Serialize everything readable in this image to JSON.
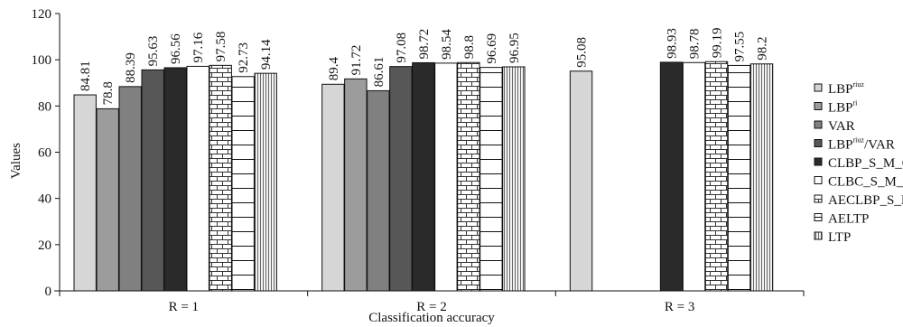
{
  "chart_data": {
    "type": "bar",
    "xlabel": "Classification accuracy",
    "ylabel": "Values",
    "ylim": [
      0,
      120
    ],
    "yticks": [
      0,
      20,
      40,
      60,
      80,
      100,
      120
    ],
    "grid": false,
    "legend_position": "right",
    "categories": [
      "R = 1",
      "R = 2",
      "R = 3"
    ],
    "series": [
      {
        "name": "LBP",
        "sup": "riuz",
        "style": "light",
        "values": [
          84.81,
          89.4,
          95.08
        ]
      },
      {
        "name": "LBP",
        "sup": "ri",
        "style": "mid",
        "values": [
          78.8,
          91.72,
          null
        ]
      },
      {
        "name": "VAR",
        "sup": "",
        "style": "midgray",
        "values": [
          88.39,
          86.61,
          null
        ]
      },
      {
        "name": "LBP",
        "sup": "riuz",
        "suffix": "/VAR",
        "style": "darkgray",
        "values": [
          95.63,
          97.08,
          null
        ]
      },
      {
        "name": "CLBP_S_M_C",
        "sup": "",
        "style": "dark",
        "values": [
          96.56,
          98.72,
          98.93
        ]
      },
      {
        "name": "CLBC_S_M_C",
        "sup": "",
        "style": "white",
        "values": [
          97.16,
          98.54,
          98.78
        ]
      },
      {
        "name": "AECLBP_S_M_C",
        "sup": "",
        "style": "brick",
        "values": [
          97.58,
          98.8,
          99.19
        ]
      },
      {
        "name": "AELTP",
        "sup": "",
        "style": "hlines",
        "values": [
          92.73,
          96.69,
          97.55
        ]
      },
      {
        "name": "LTP",
        "sup": "",
        "style": "vlines",
        "values": [
          94.14,
          96.95,
          98.2
        ]
      }
    ]
  }
}
